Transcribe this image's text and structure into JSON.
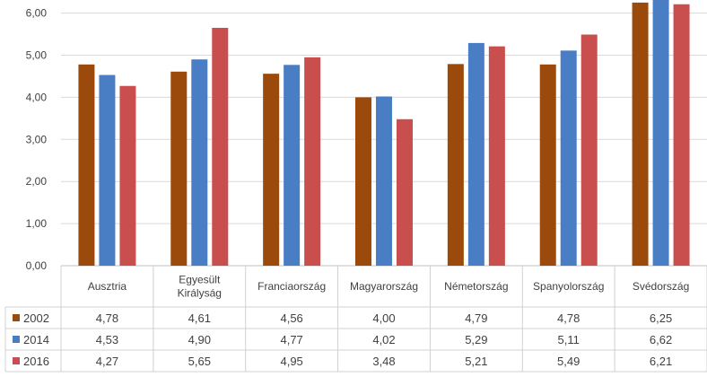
{
  "chart_data": {
    "type": "bar",
    "categories": [
      [
        "Ausztria"
      ],
      [
        "Egyesült",
        "Királyság"
      ],
      [
        "Franciaország"
      ],
      [
        "Magyarország"
      ],
      [
        "Németország"
      ],
      [
        "Spanyolország"
      ],
      [
        "Svédország"
      ]
    ],
    "series": [
      {
        "name": "2002",
        "color": "#9c4a0c",
        "values": [
          4.78,
          4.61,
          4.56,
          4.0,
          4.79,
          4.78,
          6.25
        ],
        "labels": [
          "4,78",
          "4,61",
          "4,56",
          "4,00",
          "4,79",
          "4,78",
          "6,25"
        ]
      },
      {
        "name": "2014",
        "color": "#4a7ec4",
        "values": [
          4.53,
          4.9,
          4.77,
          4.02,
          5.29,
          5.11,
          6.62
        ],
        "labels": [
          "4,53",
          "4,90",
          "4,77",
          "4,02",
          "5,29",
          "5,11",
          "6,62"
        ]
      },
      {
        "name": "2016",
        "color": "#c94f4f",
        "values": [
          4.27,
          5.65,
          4.95,
          3.48,
          5.21,
          5.49,
          6.21
        ],
        "labels": [
          "4,27",
          "5,65",
          "4,95",
          "3,48",
          "5,21",
          "5,49",
          "6,21"
        ]
      }
    ],
    "yticks": [
      "0,00",
      "1,00",
      "2,00",
      "3,00",
      "4,00",
      "5,00",
      "6,00"
    ],
    "ylim": [
      0,
      6.5
    ],
    "grid": true,
    "legend": "data-table"
  }
}
